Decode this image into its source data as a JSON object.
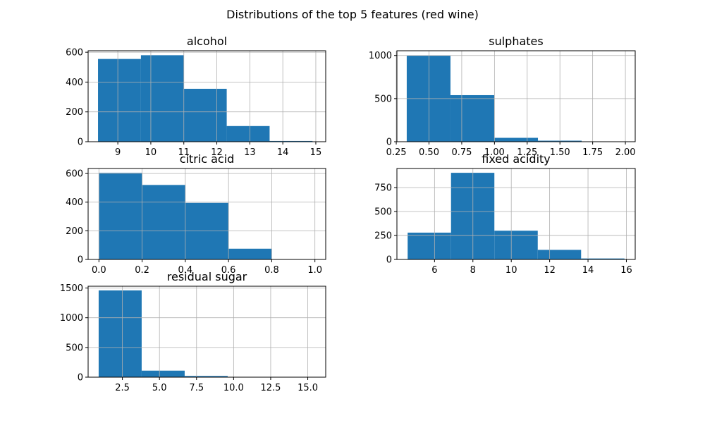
{
  "figure": {
    "title": "Distributions of the top 5 features (red wine)",
    "bar_color": "#1f77b4"
  },
  "chart_data": [
    {
      "type": "bar",
      "title": "alcohol",
      "xlabel": "",
      "ylabel": "",
      "xlim": [
        8.1,
        15.3
      ],
      "ylim": [
        0,
        610
      ],
      "bins": [
        {
          "start": 8.4,
          "end": 9.7,
          "count": 555
        },
        {
          "start": 9.7,
          "end": 11.0,
          "count": 580
        },
        {
          "start": 11.0,
          "end": 12.3,
          "count": 355
        },
        {
          "start": 12.3,
          "end": 13.6,
          "count": 105
        },
        {
          "start": 13.6,
          "end": 14.9,
          "count": 5
        }
      ],
      "xticks": [
        9,
        10,
        11,
        12,
        13,
        14,
        15
      ],
      "yticks": [
        0,
        200,
        400,
        600
      ],
      "grid": true
    },
    {
      "type": "bar",
      "title": "sulphates",
      "xlabel": "",
      "ylabel": "",
      "xlim": [
        0.255,
        2.075
      ],
      "ylim": [
        0,
        1055
      ],
      "bins": [
        {
          "start": 0.33,
          "end": 0.664,
          "count": 1000
        },
        {
          "start": 0.664,
          "end": 0.998,
          "count": 540
        },
        {
          "start": 0.998,
          "end": 1.332,
          "count": 45
        },
        {
          "start": 1.332,
          "end": 1.666,
          "count": 12
        },
        {
          "start": 1.666,
          "end": 2.0,
          "count": 3
        }
      ],
      "xticks": [
        "0.25",
        "0.50",
        "0.75",
        "1.00",
        "1.25",
        "1.50",
        "1.75",
        "2.00"
      ],
      "yticks": [
        0,
        500,
        1000
      ],
      "grid": true
    },
    {
      "type": "bar",
      "title": "citric acid",
      "xlabel": "",
      "ylabel": "",
      "xlim": [
        -0.05,
        1.05
      ],
      "ylim": [
        0,
        635
      ],
      "bins": [
        {
          "start": 0.0,
          "end": 0.2,
          "count": 605
        },
        {
          "start": 0.2,
          "end": 0.4,
          "count": 520
        },
        {
          "start": 0.4,
          "end": 0.6,
          "count": 395
        },
        {
          "start": 0.6,
          "end": 0.8,
          "count": 75
        },
        {
          "start": 0.8,
          "end": 1.0,
          "count": 1
        }
      ],
      "xticks": [
        "0.0",
        "0.2",
        "0.4",
        "0.6",
        "0.8",
        "1.0"
      ],
      "yticks": [
        0,
        200,
        400,
        600
      ],
      "grid": true
    },
    {
      "type": "bar",
      "title": "fixed acidity",
      "xlabel": "",
      "ylabel": "",
      "xlim": [
        4.04,
        16.46
      ],
      "ylim": [
        0,
        950
      ],
      "bins": [
        {
          "start": 4.6,
          "end": 6.86,
          "count": 280
        },
        {
          "start": 6.86,
          "end": 9.12,
          "count": 905
        },
        {
          "start": 9.12,
          "end": 11.38,
          "count": 300
        },
        {
          "start": 11.38,
          "end": 13.64,
          "count": 100
        },
        {
          "start": 13.64,
          "end": 15.9,
          "count": 10
        }
      ],
      "xticks": [
        6,
        8,
        10,
        12,
        14,
        16
      ],
      "yticks": [
        0,
        250,
        500,
        750
      ],
      "grid": true
    },
    {
      "type": "bar",
      "title": "residual sugar",
      "xlabel": "",
      "ylabel": "",
      "xlim": [
        0.19,
        16.21
      ],
      "ylim": [
        0,
        1530
      ],
      "bins": [
        {
          "start": 0.9,
          "end": 3.8,
          "count": 1460
        },
        {
          "start": 3.8,
          "end": 6.7,
          "count": 110
        },
        {
          "start": 6.7,
          "end": 9.6,
          "count": 20
        },
        {
          "start": 9.6,
          "end": 12.5,
          "count": 2
        },
        {
          "start": 12.5,
          "end": 15.5,
          "count": 5
        }
      ],
      "xticks": [
        "2.5",
        "5.0",
        "7.5",
        "10.0",
        "12.5",
        "15.0"
      ],
      "yticks": [
        0,
        500,
        1000,
        1500
      ],
      "grid": true
    }
  ]
}
